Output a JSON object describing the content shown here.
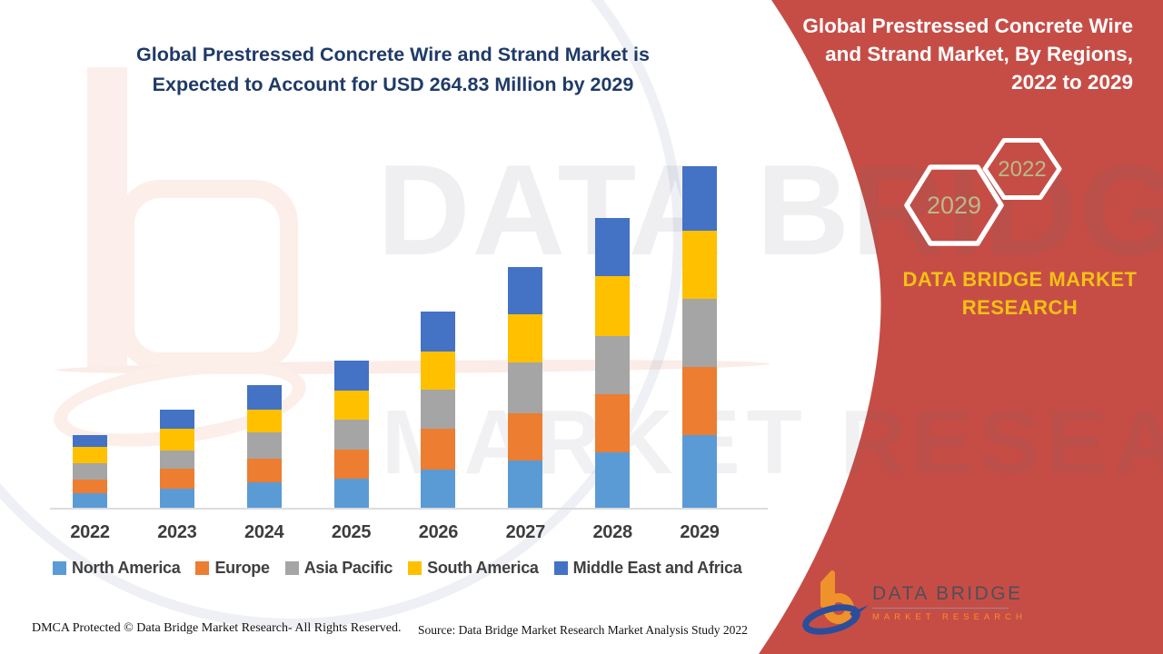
{
  "main_title": {
    "line1": "Global Prestressed Concrete Wire and Strand Market is",
    "line2": "Expected to Account for USD 264.83 Million by 2029"
  },
  "watermark": {
    "line1": "DATA BRIDGE",
    "line2": "MARKET RESEARCH"
  },
  "chart_data": {
    "type": "bar",
    "stacked": true,
    "unit": "USD Million",
    "title": "Global Prestressed Concrete Wire and Strand Market is Expected to Account for USD 264.83 Million by 2029",
    "categories": [
      "2022",
      "2023",
      "2024",
      "2025",
      "2026",
      "2027",
      "2028",
      "2029"
    ],
    "series": [
      {
        "name": "North America",
        "color": "#5b9bd5",
        "values": [
          11.3,
          14.8,
          19.5,
          22.3,
          29.6,
          36.4,
          43.0,
          56.4
        ]
      },
      {
        "name": "Europe",
        "color": "#ed7d31",
        "values": [
          10.8,
          15.7,
          18.8,
          23.0,
          31.7,
          36.7,
          45.1,
          52.8
        ]
      },
      {
        "name": "Asia Pacific",
        "color": "#a5a5a5",
        "values": [
          12.7,
          13.6,
          20.0,
          22.8,
          30.1,
          39.5,
          45.1,
          52.8
        ]
      },
      {
        "name": "South America",
        "color": "#ffc000",
        "values": [
          12.4,
          17.4,
          18.1,
          23.0,
          29.6,
          37.6,
          46.3,
          52.8
        ]
      },
      {
        "name": "Middle East and Africa",
        "color": "#4472c4",
        "values": [
          9.2,
          14.3,
          18.8,
          22.8,
          31.0,
          36.7,
          44.9,
          50.0
        ]
      }
    ],
    "totals_estimated": [
      56.4,
      75.8,
      95.2,
      113.9,
      152.0,
      186.9,
      224.4,
      264.83
    ],
    "stated_value_2029": 264.83,
    "xlabel": "",
    "ylabel": "",
    "value_axis_visible": false,
    "grid": false,
    "legend_position": "bottom",
    "baseline_color": "#dcdcdc"
  },
  "side_panel": {
    "title_line1": "Global Prestressed Concrete Wire",
    "title_line2": "and Strand Market, By Regions,",
    "title_line3": "2022 to 2029",
    "hexagon_large_label": "2029",
    "hexagon_small_label": "2022",
    "brand_text": "DATA BRIDGE MARKET RESEARCH",
    "background_color": "#c64d46",
    "brand_color": "#f5c114",
    "hexagon_label_color": "#b7ba8e",
    "hexagon_border_color": "#ffffff"
  },
  "logo": {
    "name": "DATA BRIDGE",
    "tagline": "MARKET RESEARCH",
    "orange": "#f0922b",
    "blue": "#2a4e9b"
  },
  "footer": {
    "dmca": "DMCA Protected © Data Bridge Market Research- All Rights Reserved.",
    "source": "Source: Data Bridge Market Research Market Analysis Study 2022"
  }
}
